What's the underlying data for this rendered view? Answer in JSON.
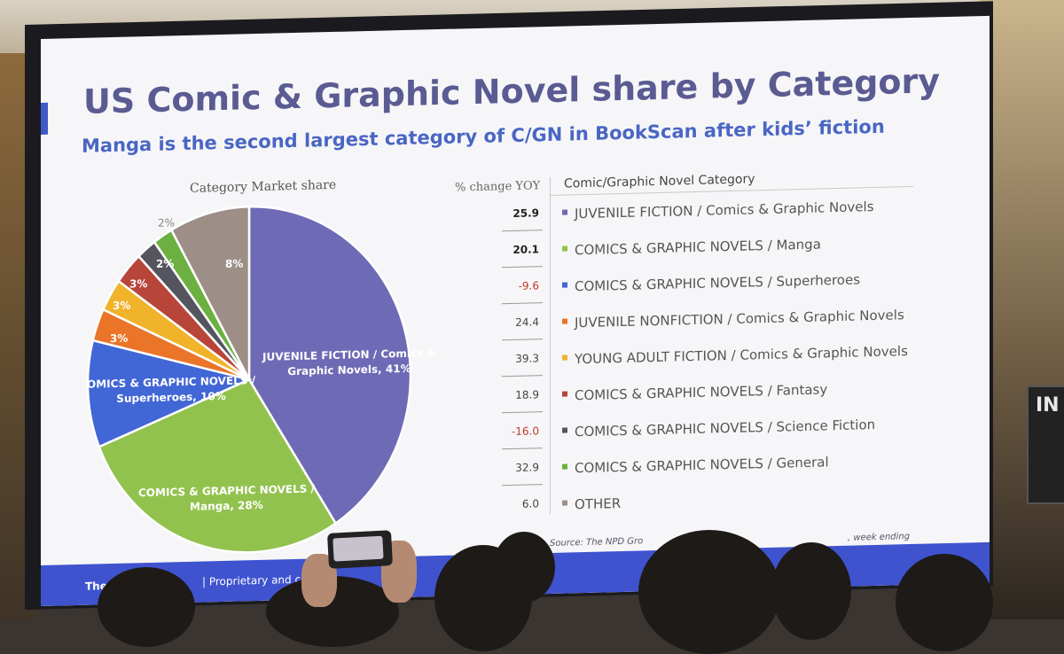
{
  "slide": {
    "title": "US Comic & Graphic Novel share by Category",
    "subtitle": "Manga is the second largest category of C/GN in BookScan after kids’ fiction",
    "pie_title": "Category Market share",
    "table_header_yoy": "% change YOY",
    "table_header_category": "Comic/Graphic Novel Category",
    "footer_left": "The N",
    "footer_mid": "| Proprietary and c",
    "source_left": "Source: The NPD Gro",
    "source_right": ", week ending"
  },
  "pie_labels": {
    "juvenile_fiction_line1": "JUVENILE FICTION / Comics &",
    "juvenile_fiction_line2": "Graphic Novels, 41%",
    "manga_line1": "COMICS & GRAPHIC NOVELS /",
    "manga_line2": "Manga, 28%",
    "superheroes_line1": "OMICS & GRAPHIC NOVELS /",
    "superheroes_line2": "Superheroes, 10%",
    "juvenile_nonfiction": "3%",
    "young_adult": "3%",
    "fantasy": "3%",
    "scifi": "2%",
    "general": "2%",
    "other": "8%"
  },
  "rows": [
    {
      "yoy": "25.9",
      "label": "JUVENILE FICTION / Comics & Graphic Novels",
      "color": "#6f6ab5",
      "bold": true
    },
    {
      "yoy": "20.1",
      "label": "COMICS & GRAPHIC NOVELS / Manga",
      "color": "#92c24e",
      "bold": true
    },
    {
      "yoy": "-9.6",
      "label": "COMICS & GRAPHIC NOVELS / Superheroes",
      "color": "#4166d5",
      "bold": false
    },
    {
      "yoy": "24.4",
      "label": "JUVENILE NONFICTION / Comics & Graphic Novels",
      "color": "#ea7428",
      "bold": false
    },
    {
      "yoy": "39.3",
      "label": "YOUNG ADULT FICTION / Comics & Graphic Novels",
      "color": "#f0b32a",
      "bold": false
    },
    {
      "yoy": "18.9",
      "label": "COMICS & GRAPHIC NOVELS / Fantasy",
      "color": "#b8453a",
      "bold": false
    },
    {
      "yoy": "-16.0",
      "label": "COMICS & GRAPHIC NOVELS / Science Fiction",
      "color": "#555560",
      "bold": false
    },
    {
      "yoy": "32.9",
      "label": "COMICS & GRAPHIC NOVELS / General",
      "color": "#6bb040",
      "bold": false
    },
    {
      "yoy": "6.0",
      "label": "OTHER",
      "color": "#9d8f88",
      "bold": false
    }
  ],
  "chart_data": {
    "type": "pie",
    "title": "Category Market share",
    "slices": [
      {
        "label": "JUVENILE FICTION / Comics & Graphic Novels",
        "value": 41,
        "color": "#6f6ab5"
      },
      {
        "label": "COMICS & GRAPHIC NOVELS / Manga",
        "value": 28,
        "color": "#92c24e"
      },
      {
        "label": "COMICS & GRAPHIC NOVELS / Superheroes",
        "value": 10,
        "color": "#4166d5"
      },
      {
        "label": "JUVENILE NONFICTION / Comics & Graphic Novels",
        "value": 3,
        "color": "#ea7428"
      },
      {
        "label": "YOUNG ADULT FICTION / Comics & Graphic Novels",
        "value": 3,
        "color": "#f0b32a"
      },
      {
        "label": "COMICS & GRAPHIC NOVELS / Fantasy",
        "value": 3,
        "color": "#b8453a"
      },
      {
        "label": "COMICS & GRAPHIC NOVELS / Science Fiction",
        "value": 2,
        "color": "#555560"
      },
      {
        "label": "COMICS & GRAPHIC NOVELS / General",
        "value": 2,
        "color": "#6bb040"
      },
      {
        "label": "OTHER",
        "value": 8,
        "color": "#9d8f88"
      }
    ],
    "yoy_change": [
      25.9,
      20.1,
      -9.6,
      24.4,
      39.3,
      18.9,
      -16.0,
      32.9,
      6.0
    ]
  }
}
